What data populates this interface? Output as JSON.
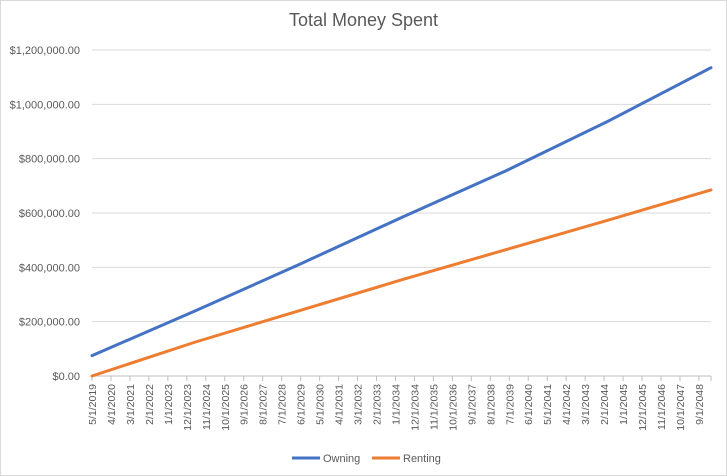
{
  "chart_data": {
    "type": "line",
    "title": "Total Money Spent",
    "xlabel": "",
    "ylabel": "",
    "ylim": [
      0,
      1200000
    ],
    "yticks": [
      "$0.00",
      "$200,000.00",
      "$400,000.00",
      "$600,000.00",
      "$800,000.00",
      "$1,000,000.00",
      "$1,200,000.00"
    ],
    "ytick_values": [
      0,
      200000,
      400000,
      600000,
      800000,
      1000000,
      1200000
    ],
    "xticks": [
      "5/1/2019",
      "4/1/2020",
      "3/1/2021",
      "2/1/2022",
      "1/1/2023",
      "12/1/2023",
      "11/1/2024",
      "10/1/2025",
      "9/1/2026",
      "8/1/2027",
      "7/1/2028",
      "6/1/2029",
      "5/1/2030",
      "4/1/2031",
      "3/1/2032",
      "2/1/2033",
      "1/1/2034",
      "12/1/2034",
      "11/1/2035",
      "10/1/2036",
      "9/1/2037",
      "8/1/2038",
      "7/1/2039",
      "6/1/2040",
      "5/1/2041",
      "4/1/2042",
      "3/1/2043",
      "2/1/2044",
      "1/1/2045",
      "12/1/2045",
      "11/1/2046",
      "10/1/2047",
      "9/1/2048"
    ],
    "x_range": [
      "5/1/2019",
      "4/1/2049"
    ],
    "grid": true,
    "legend_position": "bottom",
    "series": [
      {
        "name": "Owning",
        "color": "#4472c4",
        "x": [
          "5/1/2019",
          "5/1/2024",
          "5/1/2029",
          "5/1/2034",
          "5/1/2039",
          "5/1/2044",
          "4/1/2049"
        ],
        "values": [
          75000,
          240000,
          410000,
          585000,
          755000,
          940000,
          1135000
        ]
      },
      {
        "name": "Renting",
        "color": "#ed7d31",
        "x": [
          "5/1/2019",
          "5/1/2024",
          "5/1/2029",
          "5/1/2034",
          "5/1/2039",
          "5/1/2044",
          "4/1/2049"
        ],
        "values": [
          0,
          125000,
          240000,
          355000,
          465000,
          575000,
          685000
        ]
      }
    ]
  }
}
